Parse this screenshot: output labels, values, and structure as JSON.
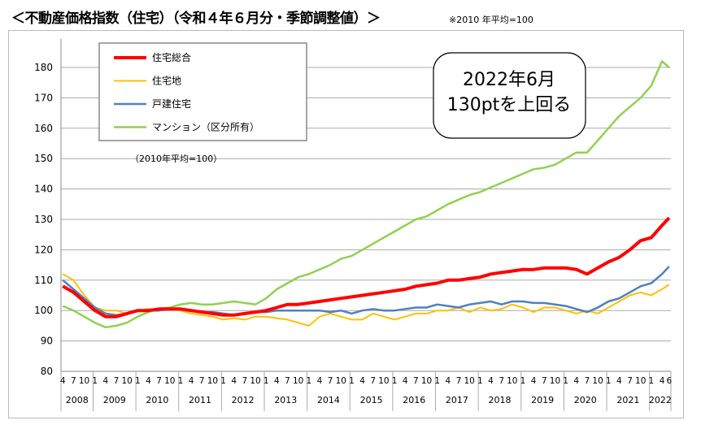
{
  "header": {
    "title": "＜不動産価格指数（住宅）（令和４年６月分・季節調整値）＞",
    "note": "※2010 年平均=100"
  },
  "chart_data": {
    "type": "line",
    "subtitle": "（2010年平均=100）",
    "annotation": [
      "2022年6月",
      "130ptを上回る"
    ],
    "ylim": [
      80,
      185
    ],
    "yticks": [
      80,
      90,
      100,
      110,
      120,
      130,
      140,
      150,
      160,
      170,
      180
    ],
    "grid": "horizontal",
    "legend_position": "top-left",
    "x_start": "2008-04",
    "x_end": "2022-06",
    "years": [
      "2008",
      "2009",
      "2010",
      "2011",
      "2012",
      "2013",
      "2014",
      "2015",
      "2016",
      "2017",
      "2018",
      "2019",
      "2020",
      "2021",
      "2022"
    ],
    "month_ticks": [
      "1",
      "4",
      "7",
      "10"
    ],
    "month_ticks_2022": [
      "1",
      "4",
      "6"
    ],
    "x": [
      "2008-04",
      "2008-07",
      "2008-10",
      "2009-01",
      "2009-04",
      "2009-07",
      "2009-10",
      "2010-01",
      "2010-04",
      "2010-07",
      "2010-10",
      "2011-01",
      "2011-04",
      "2011-07",
      "2011-10",
      "2012-01",
      "2012-04",
      "2012-07",
      "2012-10",
      "2013-01",
      "2013-04",
      "2013-07",
      "2013-10",
      "2014-01",
      "2014-04",
      "2014-07",
      "2014-10",
      "2015-01",
      "2015-04",
      "2015-07",
      "2015-10",
      "2016-01",
      "2016-04",
      "2016-07",
      "2016-10",
      "2017-01",
      "2017-04",
      "2017-07",
      "2017-10",
      "2018-01",
      "2018-04",
      "2018-07",
      "2018-10",
      "2019-01",
      "2019-04",
      "2019-07",
      "2019-10",
      "2020-01",
      "2020-04",
      "2020-07",
      "2020-10",
      "2021-01",
      "2021-04",
      "2021-07",
      "2021-10",
      "2022-01",
      "2022-04",
      "2022-06"
    ],
    "series": [
      {
        "name": "住宅総合",
        "color": "#ff0000",
        "width": 4,
        "values": [
          108,
          106,
          103,
          100,
          98,
          98,
          99,
          100,
          100,
          100.5,
          100.5,
          100.5,
          100,
          99.5,
          99,
          98.5,
          98.5,
          99,
          99.5,
          100,
          101,
          102,
          102,
          102.5,
          103,
          103.5,
          104,
          104.5,
          105,
          105.5,
          106,
          106.5,
          107,
          108,
          108.5,
          109,
          110,
          110,
          110.5,
          111,
          112,
          112.5,
          113,
          113.5,
          113.5,
          114,
          114,
          114,
          113.5,
          112,
          114,
          116,
          117.5,
          120,
          123,
          124,
          128,
          130.5
        ]
      },
      {
        "name": "住宅地",
        "color": "#ffc000",
        "width": 2,
        "values": [
          112,
          110,
          105,
          101,
          100,
          100,
          99,
          100,
          100.5,
          100,
          100.5,
          100,
          99,
          98.5,
          98,
          97,
          97.5,
          97,
          98,
          98,
          97.5,
          97,
          96,
          95,
          98,
          99,
          98,
          97,
          97,
          99,
          98,
          97,
          98,
          99,
          99,
          100,
          100,
          101,
          99.5,
          101,
          100,
          100.5,
          102,
          101,
          99.5,
          101,
          101,
          100,
          99,
          100,
          99,
          101,
          103,
          105,
          106,
          105,
          107,
          108.5
        ]
      },
      {
        "name": "戸建住宅",
        "color": "#4f81bd",
        "width": 2.5,
        "values": [
          110,
          107,
          104,
          101,
          99,
          98.5,
          99,
          100,
          100,
          100,
          100.5,
          100.5,
          100,
          99.5,
          99.5,
          99,
          98.5,
          99,
          99.5,
          99.5,
          100,
          100,
          100,
          100,
          100,
          99.5,
          100,
          99,
          100,
          100.5,
          100,
          100,
          100.5,
          101,
          101,
          102,
          101.5,
          101,
          102,
          102.5,
          103,
          102,
          103,
          103,
          102.5,
          102.5,
          102,
          101.5,
          100.5,
          99.5,
          101,
          103,
          104,
          106,
          108,
          109,
          112,
          114.5
        ]
      },
      {
        "name": "マンション（区分所有）",
        "color": "#92d050",
        "width": 2.5,
        "values": [
          101.5,
          100,
          98,
          96,
          94.5,
          95,
          96,
          98,
          99.5,
          100.5,
          101,
          102,
          102.5,
          102,
          102,
          102.5,
          103,
          102.5,
          102,
          104,
          107,
          109,
          111,
          112,
          113.5,
          115,
          117,
          118,
          120,
          122,
          124,
          126,
          128,
          130,
          131,
          133,
          135,
          136.5,
          138,
          139,
          140.5,
          142,
          143.5,
          145,
          146.5,
          147,
          148,
          150,
          152,
          152,
          156,
          160,
          164,
          167,
          170,
          174,
          182,
          180
        ]
      }
    ]
  }
}
